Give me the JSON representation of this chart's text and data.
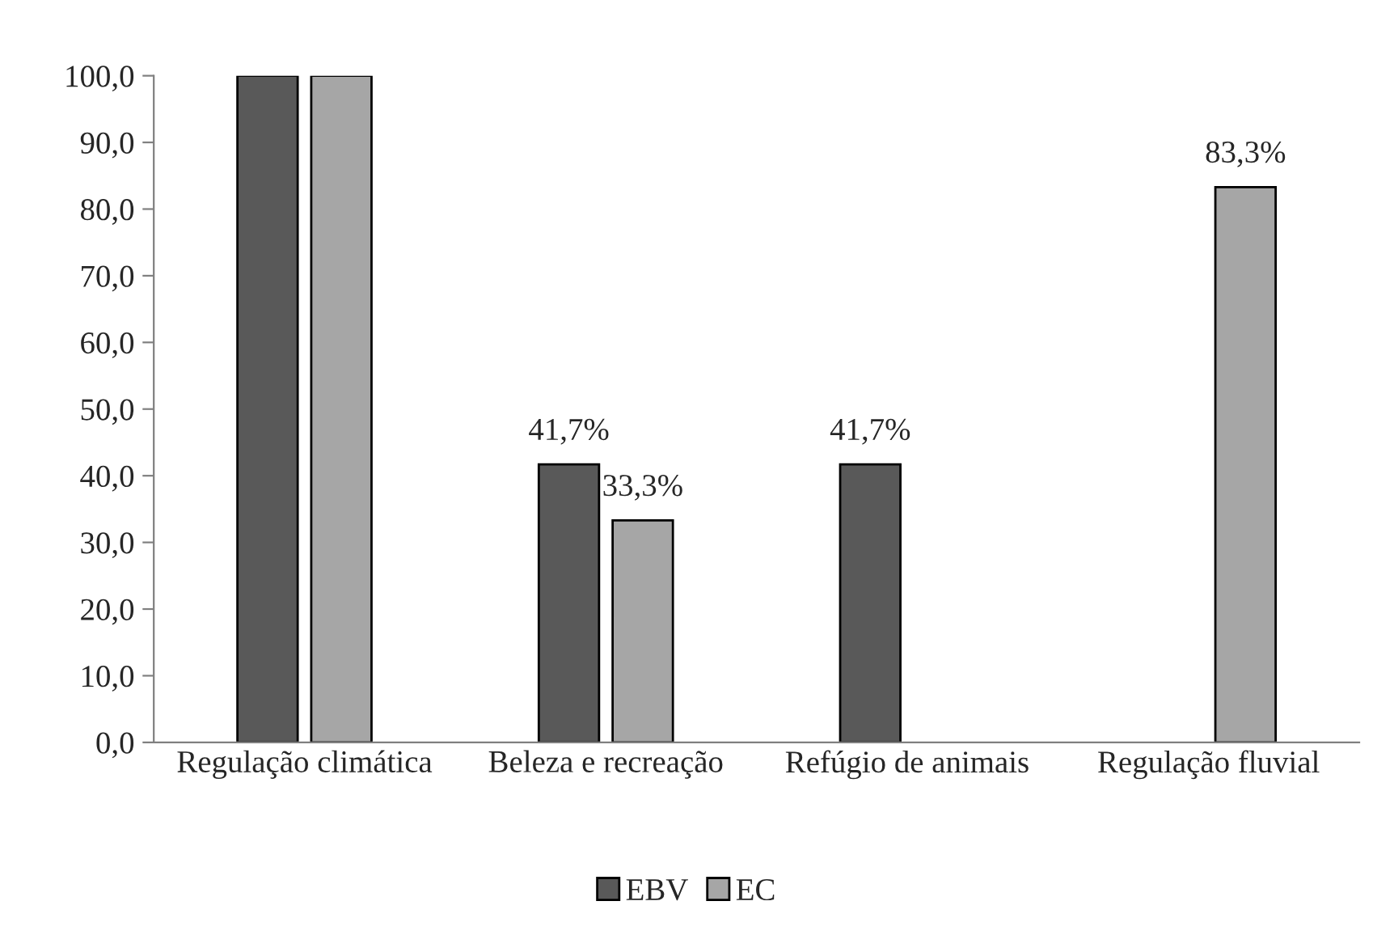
{
  "chart_data": {
    "type": "bar",
    "categories": [
      "Regulação climática",
      "Beleza e recreação",
      "Refúgio de animais",
      "Regulação fluvial"
    ],
    "series": [
      {
        "name": "EBV",
        "color": "#595959",
        "values": [
          100,
          41.7,
          41.7,
          null
        ],
        "value_labels": [
          null,
          "41,7%",
          "41,7%",
          null
        ]
      },
      {
        "name": "EC",
        "color": "#a6a6a6",
        "values": [
          100,
          33.3,
          null,
          83.3
        ],
        "value_labels": [
          null,
          "33,3%",
          null,
          "83,3%"
        ]
      }
    ],
    "ylim": [
      0,
      100
    ],
    "yticks": [
      {
        "value": 0,
        "label": "0,0"
      },
      {
        "value": 10,
        "label": "10,0"
      },
      {
        "value": 20,
        "label": "20,0"
      },
      {
        "value": 30,
        "label": "30,0"
      },
      {
        "value": 40,
        "label": "40,0"
      },
      {
        "value": 50,
        "label": "50,0"
      },
      {
        "value": 60,
        "label": "60,0"
      },
      {
        "value": 70,
        "label": "70,0"
      },
      {
        "value": 80,
        "label": "80,0"
      },
      {
        "value": 90,
        "label": "90,0"
      },
      {
        "value": 100,
        "label": "100,0"
      }
    ],
    "grid": false,
    "legend": "bottom"
  }
}
